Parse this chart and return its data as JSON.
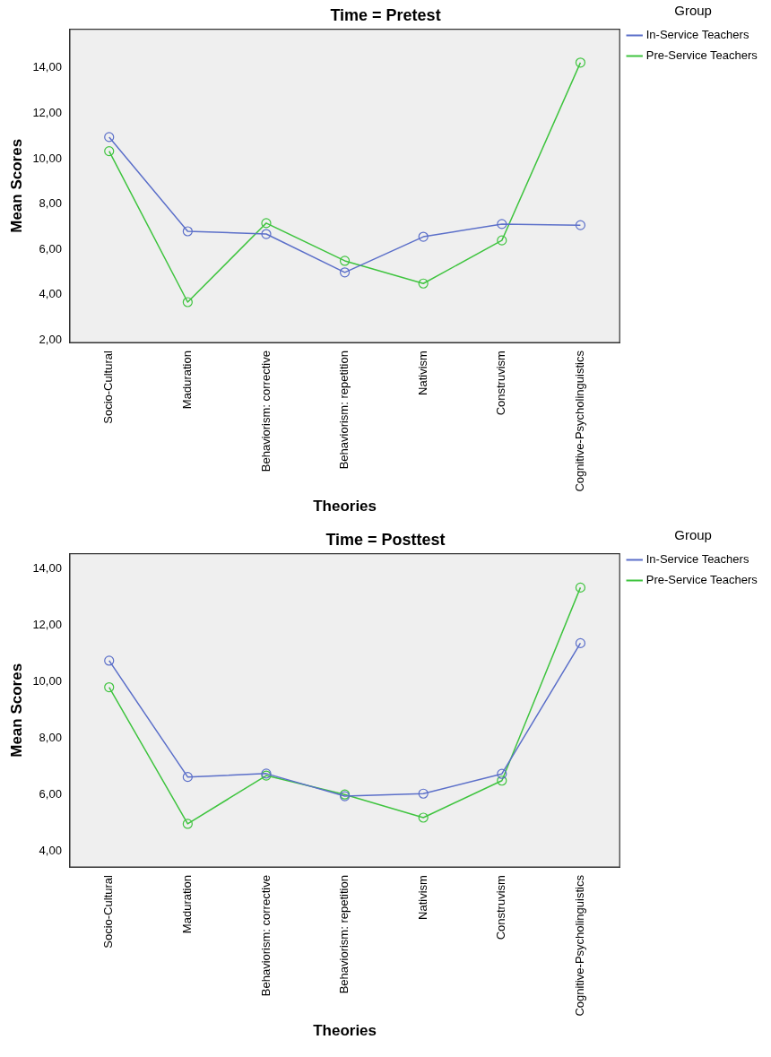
{
  "chart_data": [
    {
      "type": "line",
      "title": "Time = Pretest",
      "xlabel": "Theories",
      "ylabel": "Mean Scores",
      "legend_title": "Group",
      "legend": "top right",
      "marker": "circle",
      "grid": false,
      "categories": [
        "Socio-Cultural",
        "Maduration",
        "Behaviorism: corrective",
        "Behaviorism: repetition",
        "Nativism",
        "Construvism",
        "Cognitive-Psycholinguistics"
      ],
      "ylim": [
        1.9,
        15.7
      ],
      "yticks": [
        {
          "value": 2,
          "label": "2,00"
        },
        {
          "value": 4,
          "label": "4,00"
        },
        {
          "value": 6,
          "label": "6,00"
        },
        {
          "value": 8,
          "label": "8,00"
        },
        {
          "value": 10,
          "label": "10,00"
        },
        {
          "value": 12,
          "label": "12,00"
        },
        {
          "value": 14,
          "label": "14,00"
        }
      ],
      "series": [
        {
          "name": "In-Service Teachers",
          "color": "#5b6fc9",
          "values": [
            10.95,
            6.8,
            6.68,
            4.99,
            6.56,
            7.12,
            7.07
          ]
        },
        {
          "name": "Pre-Service Teachers",
          "color": "#3fc43f",
          "values": [
            10.33,
            3.68,
            7.16,
            5.5,
            4.5,
            6.4,
            14.23
          ]
        }
      ]
    },
    {
      "type": "line",
      "title": "Time = Posttest",
      "xlabel": "Theories",
      "ylabel": "Mean Scores",
      "legend_title": "Group",
      "legend": "top right",
      "marker": "circle",
      "grid": false,
      "categories": [
        "Socio-Cultural",
        "Maduration",
        "Behaviorism: corrective",
        "Behaviorism: repetition",
        "Nativism",
        "Construvism",
        "Cognitive-Psycholinguistics"
      ],
      "ylim": [
        3.45,
        14.55
      ],
      "yticks": [
        {
          "value": 4,
          "label": "4,00"
        },
        {
          "value": 6,
          "label": "6,00"
        },
        {
          "value": 8,
          "label": "8,00"
        },
        {
          "value": 10,
          "label": "10,00"
        },
        {
          "value": 12,
          "label": "12,00"
        },
        {
          "value": 14,
          "label": "14,00"
        }
      ],
      "series": [
        {
          "name": "In-Service Teachers",
          "color": "#5b6fc9",
          "values": [
            10.76,
            6.64,
            6.76,
            5.96,
            6.05,
            6.75,
            11.38
          ]
        },
        {
          "name": "Pre-Service Teachers",
          "color": "#3fc43f",
          "values": [
            9.82,
            4.98,
            6.69,
            6.02,
            5.2,
            6.51,
            13.35
          ]
        }
      ]
    }
  ]
}
